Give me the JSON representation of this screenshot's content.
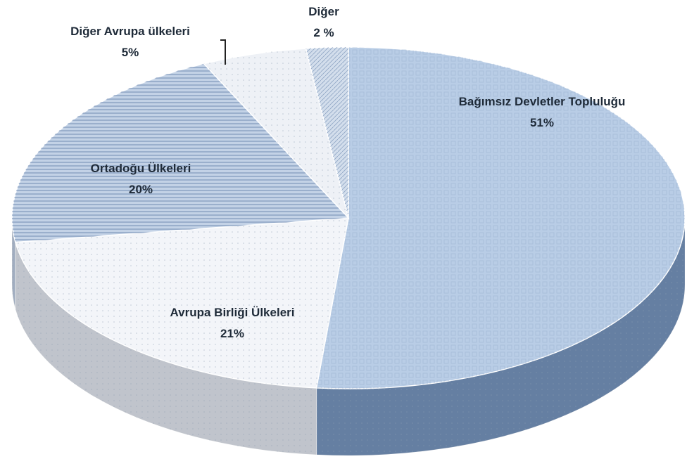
{
  "chart_data": {
    "type": "pie3d",
    "categories": [
      "Bağımsız Devletler Topluluğu",
      "Avrupa Birliği Ülkeleri",
      "Ortadoğu Ülkeleri",
      "Diğer Avrupa ülkeleri",
      "Diğer"
    ],
    "values": [
      51,
      21,
      20,
      5,
      2
    ],
    "value_labels": [
      "51%",
      "21%",
      "20%",
      "5%",
      "2 %"
    ],
    "colors": [
      "#b9cde6",
      "#f3f5f9",
      "#c3d2e6",
      "#eef1f6",
      "#d3deec"
    ]
  }
}
